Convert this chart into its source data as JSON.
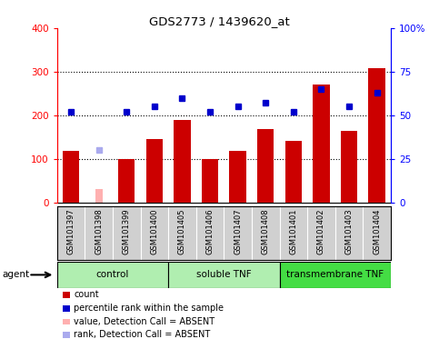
{
  "title": "GDS2773 / 1439620_at",
  "samples": [
    "GSM101397",
    "GSM101398",
    "GSM101399",
    "GSM101400",
    "GSM101405",
    "GSM101406",
    "GSM101407",
    "GSM101408",
    "GSM101401",
    "GSM101402",
    "GSM101403",
    "GSM101404"
  ],
  "counts": [
    118,
    null,
    100,
    145,
    190,
    100,
    118,
    168,
    142,
    270,
    165,
    308
  ],
  "counts_absent": [
    null,
    30,
    null,
    null,
    null,
    null,
    null,
    null,
    null,
    null,
    null,
    null
  ],
  "percentile": [
    52,
    null,
    52,
    55,
    60,
    52,
    55,
    57,
    52,
    65,
    55,
    63
  ],
  "percentile_absent": [
    null,
    30,
    null,
    null,
    null,
    null,
    null,
    null,
    null,
    null,
    null,
    null
  ],
  "groups": [
    {
      "label": "control",
      "start": 0,
      "end": 3,
      "color": "#b0eeb0"
    },
    {
      "label": "soluble TNF",
      "start": 4,
      "end": 7,
      "color": "#b0eeb0"
    },
    {
      "label": "transmembrane TNF",
      "start": 8,
      "end": 11,
      "color": "#44dd44"
    }
  ],
  "bar_color": "#cc0000",
  "bar_absent_color": "#ffb0b0",
  "dot_color": "#0000cc",
  "dot_absent_color": "#aaaaee",
  "ylim_left": [
    0,
    400
  ],
  "ylim_right": [
    0,
    100
  ],
  "yticks_left": [
    0,
    100,
    200,
    300,
    400
  ],
  "yticks_right": [
    0,
    25,
    50,
    75,
    100
  ],
  "yticklabels_right": [
    "0",
    "25",
    "50",
    "75",
    "100%"
  ],
  "plot_bg": "#ffffff",
  "tick_bg": "#d0d0d0",
  "legend_items": [
    {
      "color": "#cc0000",
      "type": "rect",
      "label": "count"
    },
    {
      "color": "#0000cc",
      "type": "rect",
      "label": "percentile rank within the sample"
    },
    {
      "color": "#ffb0b0",
      "type": "rect",
      "label": "value, Detection Call = ABSENT"
    },
    {
      "color": "#aaaaee",
      "type": "rect",
      "label": "rank, Detection Call = ABSENT"
    }
  ]
}
